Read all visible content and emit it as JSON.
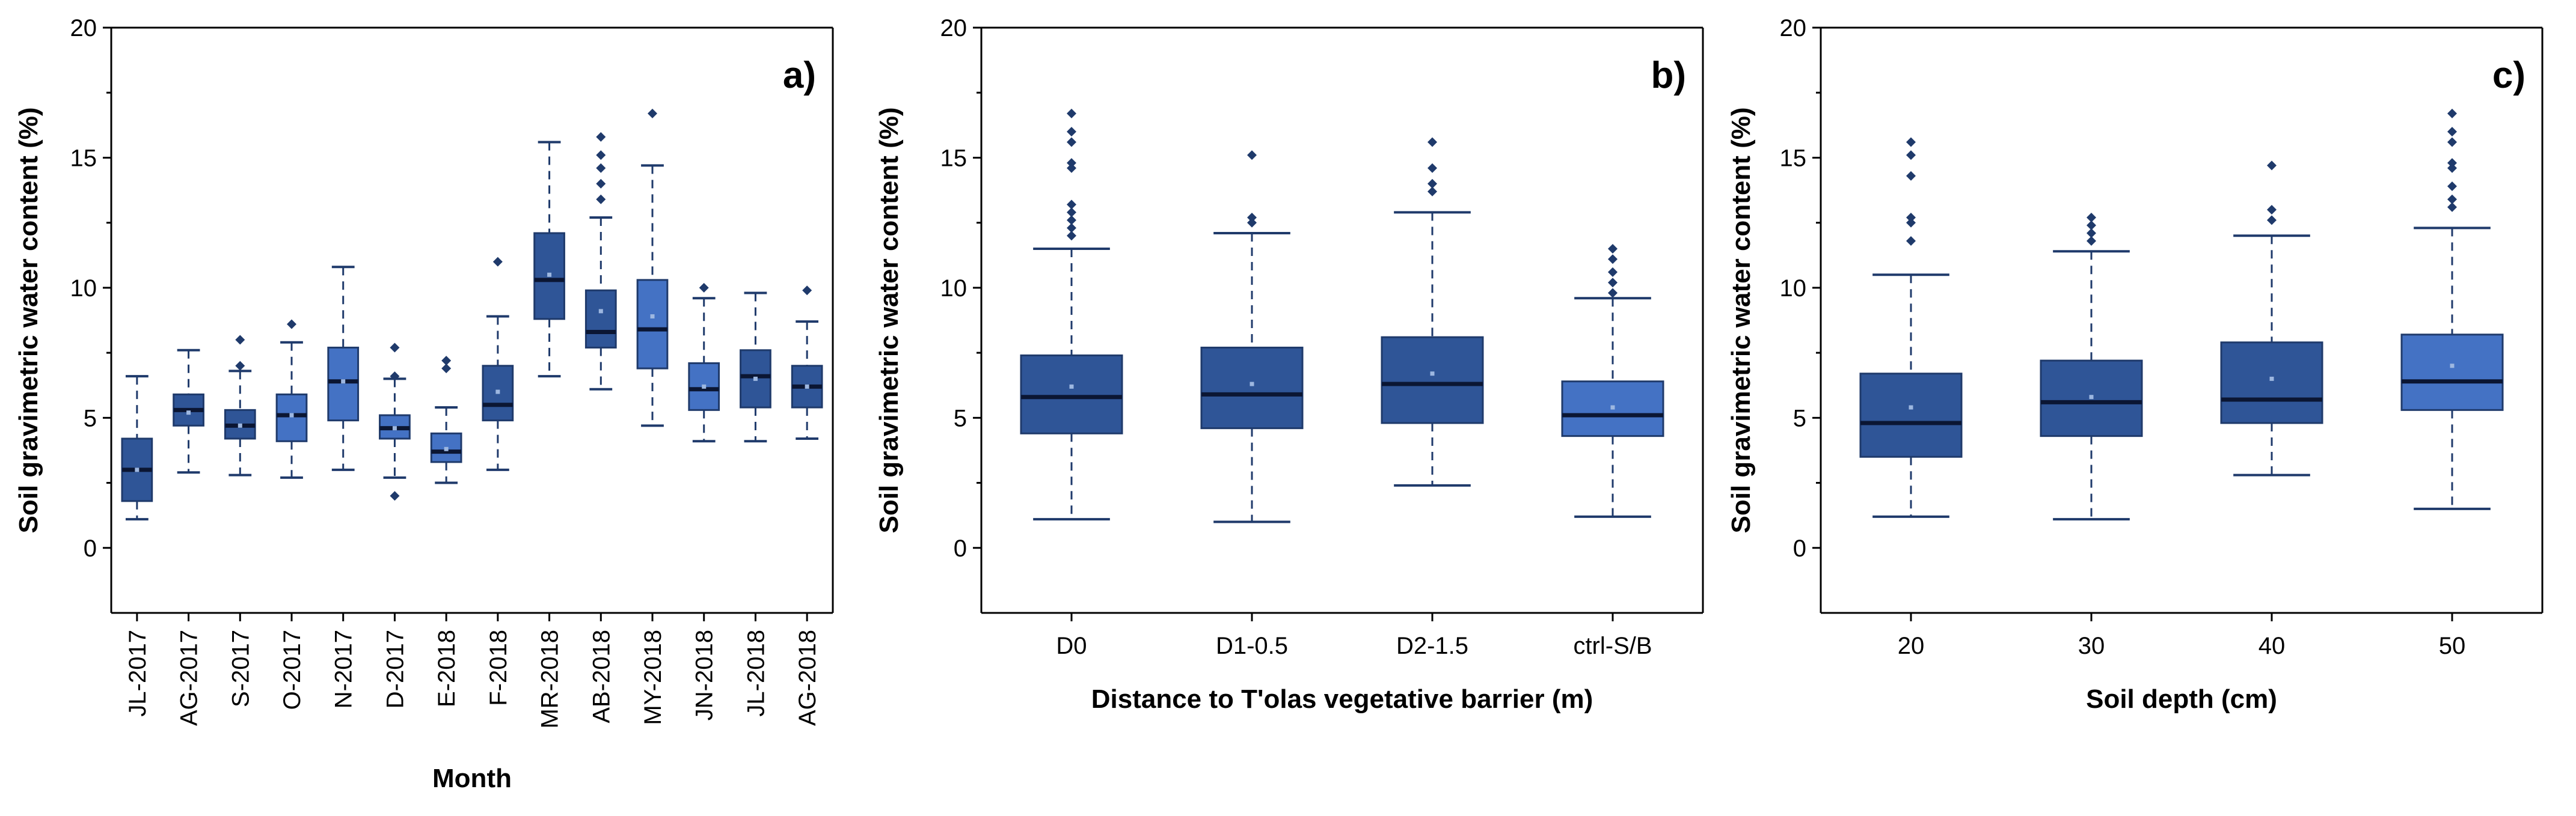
{
  "colors": {
    "box_dark": "#2f5597",
    "box_light": "#4472c4",
    "whisker": "#1f3a6b",
    "median": "#0b1633",
    "outlier": "#1f3a6b",
    "mean_marker": "#9db7e0"
  },
  "chart_data": [
    {
      "type": "box",
      "panel_label": "a)",
      "title": "",
      "xlabel": "Month",
      "ylabel": "Soil gravimetric water content (%)",
      "ylim": [
        -2.5,
        20
      ],
      "yticks": [
        "0",
        "5",
        "10",
        "15",
        "20"
      ],
      "categories": [
        "JL-2017",
        "AG-2017",
        "S-2017",
        "O-2017",
        "N-2017",
        "D-2017",
        "E-2018",
        "F-2018",
        "MR-2018",
        "AB-2018",
        "MY-2018",
        "JN-2018",
        "JL-2018",
        "AG-2018"
      ],
      "boxes": [
        {
          "whislo": 1.1,
          "q1": 1.8,
          "med": 3.0,
          "q3": 4.2,
          "whishi": 6.6,
          "mean": 3.0,
          "fliers": [],
          "shade": "dark"
        },
        {
          "whislo": 2.9,
          "q1": 4.7,
          "med": 5.3,
          "q3": 5.9,
          "whishi": 7.6,
          "mean": 5.2,
          "fliers": [],
          "shade": "dark"
        },
        {
          "whislo": 2.8,
          "q1": 4.2,
          "med": 4.7,
          "q3": 5.3,
          "whishi": 6.8,
          "mean": 4.7,
          "fliers": [
            7.0,
            8.0
          ],
          "shade": "dark"
        },
        {
          "whislo": 2.7,
          "q1": 4.1,
          "med": 5.1,
          "q3": 5.9,
          "whishi": 7.9,
          "mean": 5.1,
          "fliers": [
            8.6
          ],
          "shade": "light"
        },
        {
          "whislo": 3.0,
          "q1": 4.9,
          "med": 6.4,
          "q3": 7.7,
          "whishi": 10.8,
          "mean": 6.4,
          "fliers": [],
          "shade": "light"
        },
        {
          "whislo": 2.7,
          "q1": 4.2,
          "med": 4.6,
          "q3": 5.1,
          "whishi": 6.5,
          "mean": 4.6,
          "fliers": [
            2.0,
            6.6,
            7.7
          ],
          "shade": "light"
        },
        {
          "whislo": 2.5,
          "q1": 3.3,
          "med": 3.7,
          "q3": 4.4,
          "whishi": 5.4,
          "mean": 3.8,
          "fliers": [
            6.9,
            7.2
          ],
          "shade": "light"
        },
        {
          "whislo": 3.0,
          "q1": 4.9,
          "med": 5.5,
          "q3": 7.0,
          "whishi": 8.9,
          "mean": 6.0,
          "fliers": [
            11.0
          ],
          "shade": "dark"
        },
        {
          "whislo": 6.6,
          "q1": 8.8,
          "med": 10.3,
          "q3": 12.1,
          "whishi": 15.6,
          "mean": 10.5,
          "fliers": [],
          "shade": "dark"
        },
        {
          "whislo": 6.1,
          "q1": 7.7,
          "med": 8.3,
          "q3": 9.9,
          "whishi": 12.7,
          "mean": 9.1,
          "fliers": [
            13.4,
            14.0,
            14.6,
            15.1,
            15.8
          ],
          "shade": "dark"
        },
        {
          "whislo": 4.7,
          "q1": 6.9,
          "med": 8.4,
          "q3": 10.3,
          "whishi": 14.7,
          "mean": 8.9,
          "fliers": [
            16.7
          ],
          "shade": "light"
        },
        {
          "whislo": 4.1,
          "q1": 5.3,
          "med": 6.1,
          "q3": 7.1,
          "whishi": 9.6,
          "mean": 6.2,
          "fliers": [
            10.0
          ],
          "shade": "light"
        },
        {
          "whislo": 4.1,
          "q1": 5.4,
          "med": 6.6,
          "q3": 7.6,
          "whishi": 9.8,
          "mean": 6.5,
          "fliers": [],
          "shade": "dark"
        },
        {
          "whislo": 4.2,
          "q1": 5.4,
          "med": 6.2,
          "q3": 7.0,
          "whishi": 8.7,
          "mean": 6.2,
          "fliers": [
            9.9
          ],
          "shade": "dark"
        }
      ]
    },
    {
      "type": "box",
      "panel_label": "b)",
      "title": "",
      "xlabel": "Distance to T'olas vegetative barrier (m)",
      "ylabel": "Soil gravimetric water content (%)",
      "ylim": [
        -2.5,
        20
      ],
      "yticks": [
        "0",
        "5",
        "10",
        "15",
        "20"
      ],
      "categories": [
        "D0",
        "D1-0.5",
        "D2-1.5",
        "ctrl-S/B"
      ],
      "boxes": [
        {
          "whislo": 1.1,
          "q1": 4.4,
          "med": 5.8,
          "q3": 7.4,
          "whishi": 11.5,
          "mean": 6.2,
          "fliers": [
            12.0,
            12.3,
            12.6,
            12.9,
            13.2,
            14.6,
            14.8,
            15.6,
            16.0,
            16.7
          ],
          "shade": "dark"
        },
        {
          "whislo": 1.0,
          "q1": 4.6,
          "med": 5.9,
          "q3": 7.7,
          "whishi": 12.1,
          "mean": 6.3,
          "fliers": [
            12.5,
            12.7,
            15.1
          ],
          "shade": "dark"
        },
        {
          "whislo": 2.4,
          "q1": 4.8,
          "med": 6.3,
          "q3": 8.1,
          "whishi": 12.9,
          "mean": 6.7,
          "fliers": [
            13.7,
            14.0,
            14.6,
            15.6
          ],
          "shade": "dark"
        },
        {
          "whislo": 1.2,
          "q1": 4.3,
          "med": 5.1,
          "q3": 6.4,
          "whishi": 9.6,
          "mean": 5.4,
          "fliers": [
            9.8,
            10.2,
            10.6,
            11.1,
            11.5
          ],
          "shade": "light"
        }
      ]
    },
    {
      "type": "box",
      "panel_label": "c)",
      "title": "",
      "xlabel": "Soil depth (cm)",
      "ylabel": "Soil gravimetric water content (%)",
      "ylim": [
        -2.5,
        20
      ],
      "yticks": [
        "0",
        "5",
        "10",
        "15",
        "20"
      ],
      "categories": [
        "20",
        "30",
        "40",
        "50"
      ],
      "boxes": [
        {
          "whislo": 1.2,
          "q1": 3.5,
          "med": 4.8,
          "q3": 6.7,
          "whishi": 10.5,
          "mean": 5.4,
          "fliers": [
            11.8,
            12.5,
            12.7,
            14.3,
            15.1,
            15.6
          ],
          "shade": "dark"
        },
        {
          "whislo": 1.1,
          "q1": 4.3,
          "med": 5.6,
          "q3": 7.2,
          "whishi": 11.4,
          "mean": 5.8,
          "fliers": [
            11.8,
            12.1,
            12.4,
            12.7
          ],
          "shade": "dark"
        },
        {
          "whislo": 2.8,
          "q1": 4.8,
          "med": 5.7,
          "q3": 7.9,
          "whishi": 12.0,
          "mean": 6.5,
          "fliers": [
            12.6,
            13.0,
            14.7
          ],
          "shade": "dark"
        },
        {
          "whislo": 1.5,
          "q1": 5.3,
          "med": 6.4,
          "q3": 8.2,
          "whishi": 12.3,
          "mean": 7.0,
          "fliers": [
            13.1,
            13.4,
            13.9,
            14.6,
            14.8,
            15.6,
            16.0,
            16.7
          ],
          "shade": "light"
        }
      ]
    }
  ]
}
